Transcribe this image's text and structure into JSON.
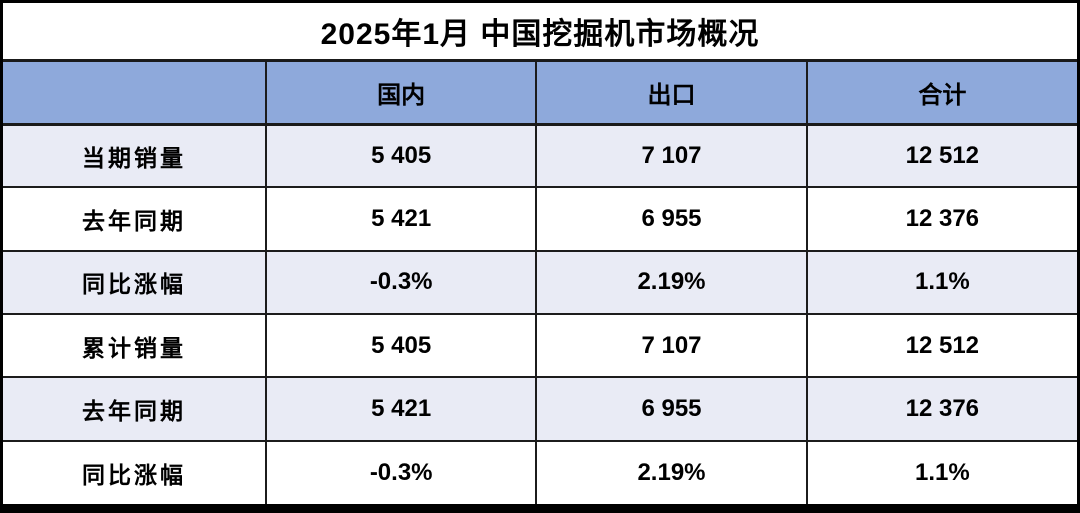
{
  "title": "2025年1月 中国挖掘机市场概况",
  "colors": {
    "header_bg": "#8EA9DB",
    "alt_row_bg": "#E9EBF5",
    "row_bg": "#FFFFFF",
    "border": "#1c1c1c",
    "text": "#000000"
  },
  "chart_data": {
    "type": "table",
    "title": "2025年1月 中国挖掘机市场概况",
    "columns": [
      "",
      "国内",
      "出口",
      "合计"
    ],
    "rows": [
      {
        "label": "当期销量",
        "values": [
          "5 405",
          "7 107",
          "12 512"
        ]
      },
      {
        "label": "去年同期",
        "values": [
          "5 421",
          "6 955",
          "12 376"
        ]
      },
      {
        "label": "同比涨幅",
        "values": [
          "-0.3%",
          "2.19%",
          "1.1%"
        ]
      },
      {
        "label": "累计销量",
        "values": [
          "5 405",
          "7 107",
          "12 512"
        ]
      },
      {
        "label": "去年同期",
        "values": [
          "5 421",
          "6 955",
          "12 376"
        ]
      },
      {
        "label": "同比涨幅",
        "values": [
          "-0.3%",
          "2.19%",
          "1.1%"
        ]
      }
    ]
  }
}
